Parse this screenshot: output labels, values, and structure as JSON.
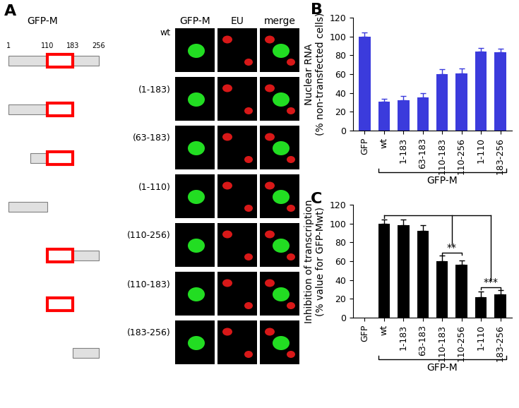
{
  "panel_labels": [
    "A",
    "B",
    "C"
  ],
  "panel_a": {
    "title": "GFP-M",
    "columns": [
      "GFP-M",
      "EU",
      "merge"
    ],
    "scale": {
      "start": 1,
      "end": 256,
      "ticks": [
        1,
        110,
        183,
        256
      ]
    },
    "domain": [
      110,
      183
    ],
    "rows": [
      {
        "label": "wt",
        "start": 1,
        "end": 256
      },
      {
        "label": "(1-183)",
        "start": 1,
        "end": 183
      },
      {
        "label": "(63-183)",
        "start": 63,
        "end": 183
      },
      {
        "label": "(1-110)",
        "start": 1,
        "end": 110
      },
      {
        "label": "(110-256)",
        "start": 110,
        "end": 256
      },
      {
        "label": "(110-183)",
        "start": 110,
        "end": 183
      },
      {
        "label": "(183-256)",
        "start": 183,
        "end": 256
      }
    ]
  },
  "chart_data": [
    {
      "type": "bar",
      "ylabel": "Nuclear RNA\n(% non-transfected cells)",
      "categories": [
        "GFP",
        "wt",
        "1-183",
        "63-183",
        "110-183",
        "110-256",
        "1-110",
        "183-256"
      ],
      "values": [
        100,
        31,
        32,
        35,
        60,
        61,
        84,
        83
      ],
      "errors": [
        4,
        3,
        5,
        5,
        5,
        5,
        4,
        4
      ],
      "color": "#3b3bdc",
      "ylim": [
        0,
        120
      ],
      "yticks": [
        0,
        20,
        40,
        60,
        80,
        100,
        120
      ],
      "group": {
        "label": "GFP-M",
        "from": "wt",
        "to": "183-256"
      }
    },
    {
      "type": "bar",
      "ylabel": "Inhibition of transcription\n(% value for GFP-Mwt)",
      "categories": [
        "GFP",
        "wt",
        "1-183",
        "63-183",
        "110-183",
        "110-256",
        "1-110",
        "183-256"
      ],
      "values": [
        0,
        100,
        98,
        92,
        60,
        56,
        22,
        25
      ],
      "errors": [
        null,
        4,
        6,
        6,
        6,
        5,
        6,
        4
      ],
      "color": "#000000",
      "ylim": [
        0,
        120
      ],
      "yticks": [
        0,
        20,
        40,
        60,
        80,
        100,
        120
      ],
      "group": {
        "label": "GFP-M",
        "from": "wt",
        "to": "183-256"
      },
      "significance": {
        "reference": "wt",
        "pairs": [
          {
            "label": "**",
            "from": "110-183",
            "to": "110-256"
          },
          {
            "label": "***",
            "from": "1-110",
            "to": "183-256"
          }
        ]
      }
    }
  ]
}
